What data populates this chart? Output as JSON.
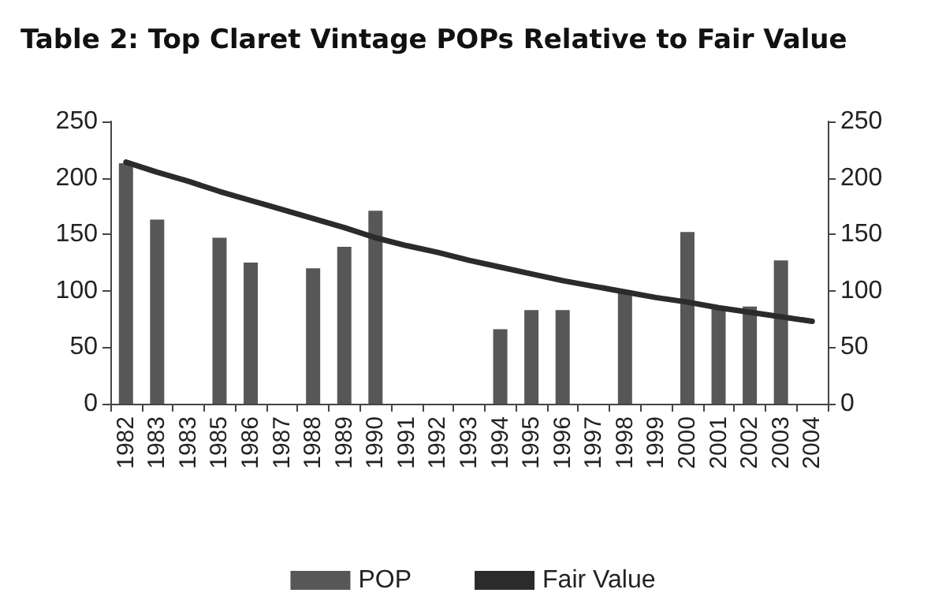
{
  "chart_data": {
    "type": "bar",
    "title": "Table 2: Top Claret Vintage POPs Relative to Fair Value",
    "categories": [
      "1982",
      "1983",
      "1983",
      "1985",
      "1986",
      "1987",
      "1988",
      "1989",
      "1990",
      "1991",
      "1992",
      "1993",
      "1994",
      "1995",
      "1996",
      "1997",
      "1998",
      "1999",
      "2000",
      "2001",
      "2002",
      "2003",
      "2004"
    ],
    "series": [
      {
        "name": "POP",
        "color": "#575757",
        "values": [
          213,
          163,
          null,
          147,
          125,
          null,
          120,
          139,
          171,
          null,
          null,
          null,
          66,
          83,
          83,
          null,
          98,
          null,
          152,
          85,
          86,
          127,
          null
        ]
      },
      {
        "name": "Fair Value",
        "type": "line",
        "color": "#2b2b2b",
        "values": [
          214,
          205,
          197,
          188,
          180,
          172,
          164,
          156,
          147,
          140,
          134,
          127,
          121,
          115,
          109,
          104,
          99,
          94,
          90,
          85,
          81,
          77,
          73
        ]
      }
    ],
    "ylim": [
      0,
      250
    ],
    "yticks": [
      0,
      50,
      100,
      150,
      200,
      250
    ],
    "y2lim": [
      0,
      250
    ],
    "y2ticks": [
      0,
      50,
      100,
      150,
      200,
      250
    ],
    "grid": false,
    "legend": "bottom",
    "marker": "none",
    "line_style": "solid"
  }
}
